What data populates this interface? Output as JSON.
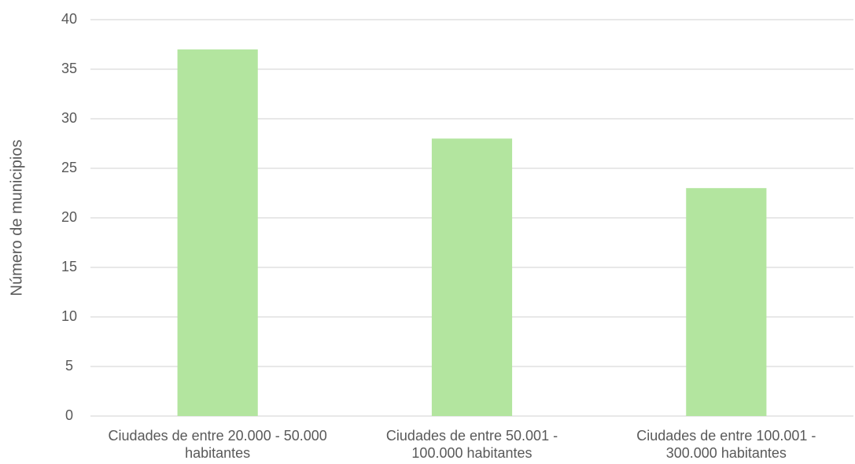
{
  "chart_data": {
    "type": "bar",
    "y_label": "Número de municipios",
    "categories": [
      "Ciudades de entre 20.000 - 50.000 habitantes",
      "Ciudades de entre 50.001 - 100.000 habitantes",
      "Ciudades de entre 100.001 - 300.000 habitantes"
    ],
    "values": [
      37,
      28,
      23
    ],
    "color": "#b3e59f",
    "ylim": [
      0,
      40
    ],
    "yticks": [
      0,
      5,
      10,
      15,
      20,
      25,
      30,
      35,
      40
    ],
    "grid": true
  }
}
